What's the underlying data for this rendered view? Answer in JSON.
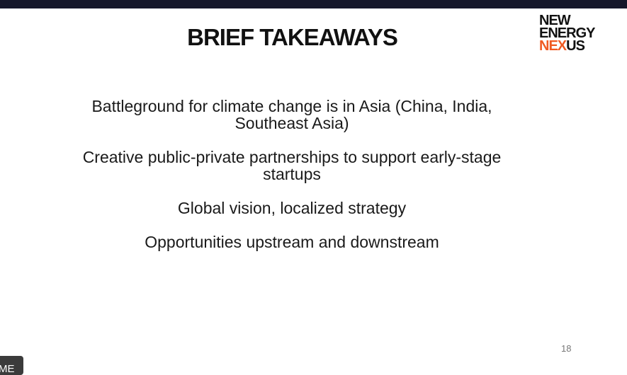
{
  "slide": {
    "title": "BRIEF TAKEAWAYS",
    "logo": {
      "line1": "NEW",
      "line2": "ENERGY",
      "line3_accent": "NEX",
      "line3_rest": "US",
      "accent_color": "#f05a22"
    },
    "bullets": [
      "Battleground for climate change is in Asia (China, India, Southeast Asia)",
      "Creative public-private partnerships to support early-stage startups",
      "Global vision, localized strategy",
      "Opportunities upstream and downstream"
    ],
    "page_number": "18"
  },
  "overlay": {
    "name_tag": "ME"
  }
}
